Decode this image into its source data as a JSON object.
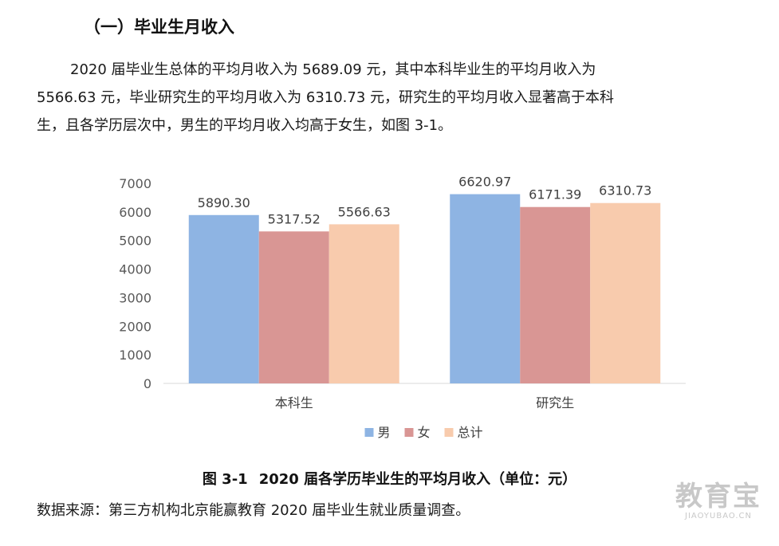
{
  "heading": "（一）毕业生月收入",
  "paragraph": {
    "line1": "2020 届毕业生总体的平均月收入为 5689.09 元，其中本科毕业生的平均月收入为",
    "line2": "5566.63 元，毕业研究生的平均月收入为 6310.73 元，研究生的平均月收入显著高于本科",
    "line3": "生，且各学历层次中，男生的平均月收入均高于女生，如图 3-1。"
  },
  "chart_data": {
    "type": "bar",
    "categories": [
      "本科生",
      "研究生"
    ],
    "series": [
      {
        "name": "男",
        "values": [
          5890.3,
          6620.97
        ],
        "labels": [
          "5890.30",
          "6620.97"
        ],
        "color": "#8eb4e3"
      },
      {
        "name": "女",
        "values": [
          5317.52,
          6171.39
        ],
        "labels": [
          "5317.52",
          "6171.39"
        ],
        "color": "#d99694"
      },
      {
        "name": "总计",
        "values": [
          5566.63,
          6310.73
        ],
        "labels": [
          "5566.63",
          "6310.73"
        ],
        "color": "#f8cbad"
      }
    ],
    "ylim": [
      0,
      7000
    ],
    "yticks": [
      0,
      1000,
      2000,
      3000,
      4000,
      5000,
      6000,
      7000
    ],
    "grid": false,
    "legend": "bottom"
  },
  "caption": {
    "number": "图 3-1",
    "title": "2020 届各学历毕业生的平均月收入（单位：元）"
  },
  "source": "数据来源：第三方机构北京能赢教育 2020 届毕业生就业质量调查。",
  "watermark": {
    "main": "教育宝",
    "sub": "JIAOYUBAO.CN"
  }
}
